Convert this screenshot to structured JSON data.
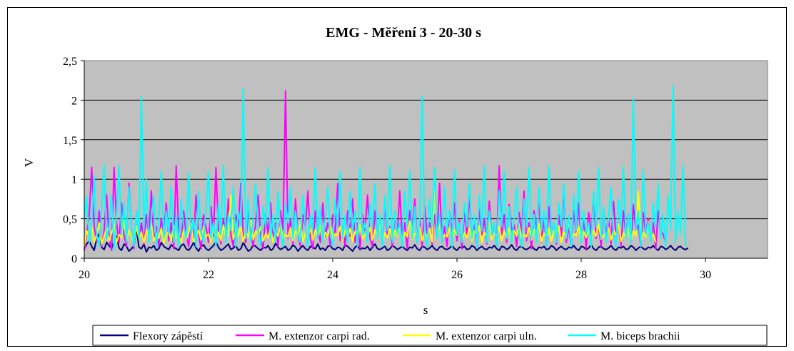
{
  "chart_data": {
    "type": "line",
    "title": "EMG - Měření 3 - 20-30 s",
    "xlabel": "s",
    "ylabel": "V",
    "xlim": [
      20,
      31
    ],
    "ylim": [
      0,
      2.5
    ],
    "x_ticks": [
      "20",
      "22",
      "24",
      "26",
      "28",
      "30"
    ],
    "x_tick_values": [
      20,
      22,
      24,
      26,
      28,
      30
    ],
    "y_ticks": [
      "0",
      "0,5",
      "1",
      "1,5",
      "2",
      "2,5"
    ],
    "y_tick_values": [
      0,
      0.5,
      1,
      1.5,
      2,
      2.5
    ],
    "grid": "horizontal",
    "legend_position": "bottom",
    "plot_background": "#c0c0c0",
    "series": [
      {
        "name": "Flexory zápěstí",
        "color": "#000080",
        "sample_start": 20,
        "sample_step": 0.04,
        "values": [
          0.12,
          0.18,
          0.22,
          0.15,
          0.1,
          0.25,
          0.3,
          0.14,
          0.11,
          0.2,
          0.16,
          0.12,
          0.22,
          0.28,
          0.13,
          0.1,
          0.18,
          0.15,
          0.09,
          0.12,
          0.16,
          0.38,
          0.14,
          0.12,
          0.18,
          0.08,
          0.14,
          0.13,
          0.16,
          0.1,
          0.12,
          0.2,
          0.15,
          0.13,
          0.11,
          0.17,
          0.14,
          0.12,
          0.1,
          0.16,
          0.18,
          0.12,
          0.1,
          0.14,
          0.2,
          0.13,
          0.09,
          0.15,
          0.17,
          0.12,
          0.1,
          0.13,
          0.16,
          0.21,
          0.14,
          0.1,
          0.12,
          0.15,
          0.18,
          0.11,
          0.13,
          0.16,
          0.1,
          0.12,
          0.2,
          0.14,
          0.09,
          0.11,
          0.17,
          0.15,
          0.12,
          0.1,
          0.14,
          0.13,
          0.16,
          0.1,
          0.12,
          0.19,
          0.14,
          0.11,
          0.13,
          0.15,
          0.1,
          0.12,
          0.17,
          0.14,
          0.09,
          0.13,
          0.16,
          0.12,
          0.1,
          0.15,
          0.14,
          0.12,
          0.18,
          0.11,
          0.13,
          0.1,
          0.15,
          0.16,
          0.12,
          0.11,
          0.14,
          0.13,
          0.1,
          0.17,
          0.15,
          0.12,
          0.09,
          0.14,
          0.16,
          0.11,
          0.13,
          0.12,
          0.15,
          0.1,
          0.14,
          0.18,
          0.12,
          0.11,
          0.13,
          0.15,
          0.1,
          0.12,
          0.16,
          0.14,
          0.11,
          0.13,
          0.15,
          0.12,
          0.1,
          0.14,
          0.13,
          0.17,
          0.12,
          0.1,
          0.15,
          0.14,
          0.11,
          0.13,
          0.16,
          0.12,
          0.1,
          0.14,
          0.15,
          0.12,
          0.11,
          0.13,
          0.16,
          0.12,
          0.1,
          0.14,
          0.13,
          0.15,
          0.11,
          0.12,
          0.16,
          0.14,
          0.1,
          0.13,
          0.15,
          0.12,
          0.11,
          0.14,
          0.13,
          0.16,
          0.12,
          0.1,
          0.15,
          0.14,
          0.11,
          0.13,
          0.17,
          0.12,
          0.1,
          0.14,
          0.15,
          0.12,
          0.11,
          0.13,
          0.16,
          0.12,
          0.1,
          0.14,
          0.13,
          0.15,
          0.11,
          0.12,
          0.16,
          0.14,
          0.1,
          0.13,
          0.15,
          0.12,
          0.11,
          0.14,
          0.13,
          0.16,
          0.12,
          0.1,
          0.15,
          0.14,
          0.11,
          0.13,
          0.17,
          0.12,
          0.1,
          0.14,
          0.15,
          0.12,
          0.11,
          0.13,
          0.16,
          0.12,
          0.1,
          0.14,
          0.13,
          0.15,
          0.11,
          0.12,
          0.16,
          0.14,
          0.1,
          0.13,
          0.15,
          0.12,
          0.11,
          0.14,
          0.13,
          0.16,
          0.12,
          0.1,
          0.15,
          0.14,
          0.11,
          0.13,
          0.16,
          0.12,
          0.1,
          0.14,
          0.15,
          0.12,
          0.11,
          0.13
        ]
      },
      {
        "name": "M. extenzor carpi rad.",
        "color": "#ff00ff",
        "sample_start": 20,
        "sample_step": 0.04,
        "values": [
          0.1,
          0.3,
          0.55,
          1.15,
          0.4,
          0.2,
          0.6,
          0.15,
          0.35,
          0.8,
          0.25,
          0.1,
          1.15,
          0.45,
          0.2,
          0.7,
          0.3,
          0.15,
          0.95,
          0.4,
          0.12,
          0.6,
          0.25,
          0.45,
          0.18,
          0.55,
          0.3,
          0.85,
          0.2,
          0.4,
          0.15,
          0.5,
          0.28,
          0.7,
          0.22,
          0.45,
          0.12,
          1.17,
          0.35,
          0.2,
          0.6,
          0.3,
          0.15,
          0.48,
          0.25,
          0.8,
          0.3,
          0.12,
          0.55,
          0.4,
          0.2,
          0.65,
          0.28,
          1.15,
          0.35,
          0.18,
          0.5,
          0.25,
          0.75,
          0.3,
          0.15,
          0.55,
          0.4,
          0.95,
          0.28,
          0.2,
          0.6,
          0.35,
          0.15,
          0.45,
          0.8,
          0.25,
          0.12,
          0.55,
          0.3,
          0.7,
          0.2,
          0.45,
          0.15,
          0.6,
          0.35,
          2.12,
          0.25,
          0.5,
          0.18,
          0.75,
          0.3,
          0.15,
          0.55,
          0.4,
          0.85,
          0.25,
          0.12,
          0.6,
          0.35,
          0.2,
          0.7,
          0.28,
          0.45,
          0.15,
          0.55,
          0.3,
          0.95,
          0.22,
          0.4,
          0.15,
          0.6,
          0.28,
          0.75,
          0.2,
          0.45,
          0.12,
          0.55,
          0.35,
          0.8,
          0.25,
          0.15,
          0.6,
          0.3,
          0.5,
          0.18,
          0.7,
          0.28,
          0.4,
          0.15,
          0.55,
          0.3,
          0.85,
          0.22,
          0.45,
          0.12,
          0.6,
          0.35,
          0.75,
          0.2,
          0.5,
          0.15,
          0.65,
          0.3,
          0.45,
          0.18,
          0.55,
          0.28,
          0.95,
          0.2,
          0.4,
          0.15,
          0.6,
          0.32,
          0.7,
          0.22,
          0.48,
          0.12,
          0.58,
          0.3,
          0.8,
          0.25,
          0.42,
          0.15,
          0.62,
          0.3,
          0.5,
          0.18,
          0.72,
          0.28,
          0.45,
          0.15,
          1.17,
          0.3,
          0.55,
          0.2,
          0.68,
          0.35,
          0.42,
          0.15,
          0.58,
          0.3,
          0.85,
          0.22,
          0.45,
          0.12,
          0.6,
          0.35,
          0.75,
          0.2,
          0.5,
          0.15,
          0.65,
          0.3,
          0.45,
          0.18,
          0.55,
          0.28,
          0.9,
          0.2,
          0.4,
          0.15,
          0.6,
          0.32,
          0.7,
          0.22,
          0.48,
          0.12,
          0.58,
          0.3,
          0.8,
          0.25,
          0.42,
          0.15,
          0.62,
          0.3,
          0.5,
          0.18,
          0.72,
          0.28,
          0.45,
          0.15,
          0.6,
          0.3,
          0.55,
          0.2,
          0.68,
          0.35,
          0.42,
          0.15,
          0.58,
          0.3,
          0.5,
          0.22,
          0.45,
          0.12,
          0.6,
          0.35,
          0.3,
          0.2
        ]
      },
      {
        "name": "M. extenzor carpi uln.",
        "color": "#ffff00",
        "sample_start": 20,
        "sample_step": 0.04,
        "values": [
          0.15,
          0.35,
          0.25,
          0.4,
          0.2,
          0.3,
          0.45,
          0.18,
          0.28,
          0.38,
          0.22,
          0.32,
          0.42,
          0.2,
          0.3,
          0.26,
          0.48,
          0.22,
          0.35,
          0.28,
          0.18,
          0.4,
          0.25,
          0.33,
          0.2,
          0.36,
          0.27,
          0.44,
          0.21,
          0.31,
          0.25,
          0.38,
          0.19,
          0.29,
          0.34,
          0.22,
          0.41,
          0.26,
          0.3,
          0.2,
          0.37,
          0.24,
          0.32,
          0.45,
          0.21,
          0.28,
          0.35,
          0.23,
          0.4,
          0.27,
          0.31,
          0.2,
          0.38,
          0.25,
          0.33,
          0.22,
          0.42,
          0.26,
          0.3,
          0.8,
          0.24,
          0.36,
          0.28,
          0.41,
          0.21,
          0.33,
          0.27,
          0.48,
          0.23,
          0.35,
          0.29,
          0.4,
          0.22,
          0.31,
          0.26,
          0.38,
          0.2,
          0.34,
          0.28,
          0.43,
          0.24,
          0.3,
          0.27,
          0.39,
          0.22,
          0.35,
          0.29,
          0.44,
          0.21,
          0.32,
          0.26,
          0.38,
          0.23,
          0.36,
          0.28,
          0.41,
          0.2,
          0.33,
          0.27,
          0.46,
          0.24,
          0.31,
          0.29,
          0.4,
          0.22,
          0.35,
          0.26,
          0.38,
          0.21,
          0.34,
          0.28,
          0.43,
          0.24,
          0.3,
          0.27,
          0.39,
          0.23,
          0.36,
          0.29,
          0.44,
          0.21,
          0.32,
          0.26,
          0.38,
          0.22,
          0.35,
          0.28,
          0.41,
          0.2,
          0.33,
          0.27,
          0.47,
          0.24,
          0.31,
          0.29,
          0.4,
          0.22,
          0.34,
          0.26,
          0.38,
          0.21,
          0.85,
          0.28,
          0.43,
          0.24,
          0.3,
          0.27,
          0.39,
          0.23,
          0.36,
          0.29,
          0.44,
          0.21,
          0.32,
          0.26,
          0.38,
          0.22,
          0.35,
          0.28,
          0.41,
          0.2,
          0.33,
          0.27,
          0.46,
          0.24,
          0.31,
          0.29,
          0.4,
          0.22,
          0.34,
          0.26,
          0.38,
          0.21,
          0.35,
          0.28,
          0.43,
          0.24,
          0.3,
          0.27,
          0.39,
          0.23,
          0.36,
          0.29,
          0.44,
          0.21,
          0.32,
          0.26,
          0.38,
          0.22,
          0.35,
          0.28,
          0.41,
          0.2,
          0.33,
          0.27,
          0.46,
          0.24,
          0.31,
          0.29,
          0.4,
          0.22,
          0.34,
          0.26,
          0.38,
          0.21,
          0.35,
          0.28,
          0.43,
          0.24,
          0.3,
          0.27,
          0.39,
          0.23,
          0.36,
          0.29,
          0.44,
          0.21,
          0.32,
          0.26,
          0.38,
          0.22,
          0.35,
          0.28,
          0.85,
          0.2,
          0.33,
          0.27,
          0.46,
          0.24,
          0.31,
          0.2
        ]
      },
      {
        "name": "M. biceps brachii",
        "color": "#00ffff",
        "sample_start": 20,
        "sample_step": 0.04,
        "values": [
          0.5,
          0.78,
          0.2,
          0.45,
          1.05,
          0.3,
          0.15,
          0.6,
          1.18,
          0.25,
          0.4,
          0.8,
          0.1,
          0.55,
          1.17,
          0.3,
          0.7,
          0.2,
          0.9,
          0.4,
          0.15,
          0.6,
          0.25,
          2.05,
          0.35,
          1.0,
          0.2,
          0.5,
          0.8,
          0.15,
          0.45,
          1.1,
          0.25,
          0.6,
          0.3,
          0.9,
          0.2,
          0.55,
          0.15,
          0.75,
          0.4,
          0.25,
          1.08,
          0.3,
          0.5,
          0.15,
          0.85,
          0.35,
          0.2,
          0.65,
          1.1,
          0.25,
          0.45,
          0.15,
          0.7,
          0.3,
          1.17,
          0.2,
          0.55,
          0.35,
          0.9,
          0.15,
          0.6,
          0.4,
          2.15,
          0.25,
          0.75,
          0.2,
          0.5,
          0.95,
          0.3,
          0.15,
          0.65,
          0.4,
          1.15,
          0.25,
          0.55,
          0.2,
          0.85,
          0.35,
          0.15,
          0.7,
          0.45,
          0.9,
          0.25,
          0.6,
          0.3,
          0.2,
          0.8,
          0.4,
          0.15,
          0.55,
          0.35,
          1.15,
          0.25,
          0.65,
          0.2,
          0.5,
          0.9,
          0.3,
          0.15,
          0.75,
          0.4,
          1.1,
          0.25,
          0.55,
          0.2,
          0.85,
          0.35,
          0.6,
          0.15,
          1.15,
          0.3,
          0.45,
          0.2,
          0.7,
          0.4,
          0.95,
          0.25,
          0.55,
          0.15,
          0.8,
          0.35,
          1.17,
          0.2,
          0.6,
          0.3,
          0.45,
          0.15,
          0.85,
          0.4,
          1.1,
          0.25,
          0.65,
          0.2,
          0.5,
          2.05,
          0.3,
          0.15,
          0.75,
          0.4,
          1.15,
          0.25,
          0.55,
          0.2,
          0.9,
          0.35,
          0.6,
          0.15,
          1.12,
          0.3,
          0.45,
          0.2,
          0.7,
          0.4,
          0.95,
          0.25,
          0.55,
          0.15,
          0.8,
          0.35,
          1.17,
          0.2,
          0.6,
          0.3,
          0.45,
          0.15,
          0.85,
          0.4,
          1.1,
          0.25,
          0.65,
          0.2,
          0.5,
          0.9,
          0.3,
          0.15,
          0.75,
          0.4,
          1.15,
          0.25,
          0.55,
          0.2,
          0.9,
          0.35,
          0.6,
          0.15,
          1.17,
          0.3,
          0.45,
          0.2,
          0.7,
          0.4,
          0.95,
          0.25,
          0.55,
          0.15,
          0.8,
          0.35,
          1.1,
          0.2,
          0.6,
          0.3,
          0.45,
          0.15,
          0.85,
          0.4,
          1.15,
          0.25,
          0.65,
          0.2,
          0.5,
          0.9,
          0.3,
          0.15,
          0.75,
          0.4,
          1.15,
          0.25,
          0.55,
          0.2,
          2.02,
          0.35,
          0.6,
          0.15,
          1.12,
          0.3,
          0.45,
          0.2,
          0.7,
          0.4,
          0.95,
          0.25,
          0.55,
          0.15,
          0.8,
          0.35,
          2.18,
          0.2,
          0.6,
          0.3,
          1.17,
          0.15
        ]
      }
    ]
  }
}
